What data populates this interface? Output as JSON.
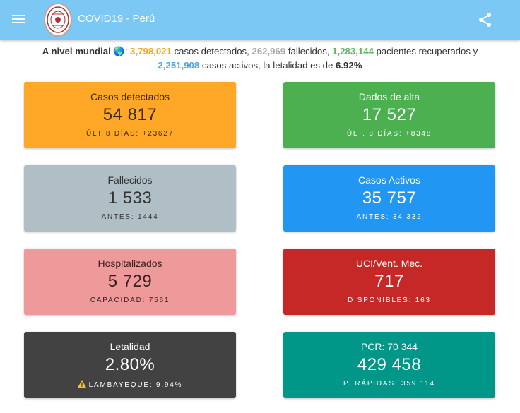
{
  "appbar": {
    "title": "COVID19 - Perú",
    "menu_icon": "menu-icon",
    "share_icon": "share-icon",
    "logo": "university-seal-logo"
  },
  "summary": {
    "prefix": "A nivel mundial",
    "globe": "🌎",
    "detected": "3,798,021",
    "detected_text": "casos detectados,",
    "deaths": "262,969",
    "deaths_text": "fallecidos,",
    "recovered": "1,283,144",
    "recovered_text": "pacientes recuperados y",
    "active": "2,251,908",
    "active_text": "casos activos, la letalidad es de",
    "lethality": "6.92%"
  },
  "cards": [
    {
      "label": "Casos detectados",
      "value": "54 817",
      "sub": "ÚLT 8 DÍAS: +23627"
    },
    {
      "label": "Dados de alta",
      "value": "17 527",
      "sub": "ÚLT. 8 DÍAS: +8348"
    },
    {
      "label": "Fallecidos",
      "value": "1 533",
      "sub": "ANTES: 1444"
    },
    {
      "label": "Casos Activos",
      "value": "35 757",
      "sub": "ANTES: 34 332"
    },
    {
      "label": "Hospitalizados",
      "value": "5 729",
      "sub": "CAPACIDAD: 7561"
    },
    {
      "label": "UCI/Vent. Mec.",
      "value": "717",
      "sub": "DISPONIBLES: 163"
    },
    {
      "label": "Letalidad",
      "value": "2.80%",
      "sub": "LAMBAYEQUE: 9.94%",
      "sub_icon": "warning-icon"
    },
    {
      "label": "PCR: 70 344",
      "value": "429 458",
      "sub": "P. RÁPIDAS: 359 114"
    }
  ],
  "colors": {
    "appbar": "#7cc8f5",
    "orange": "#ffa726",
    "green": "#4caf50",
    "grey": "#b0bec5",
    "blue": "#2196f3",
    "pink": "#ef9a9a",
    "red": "#c62828",
    "dark": "#424242",
    "teal": "#009688"
  }
}
